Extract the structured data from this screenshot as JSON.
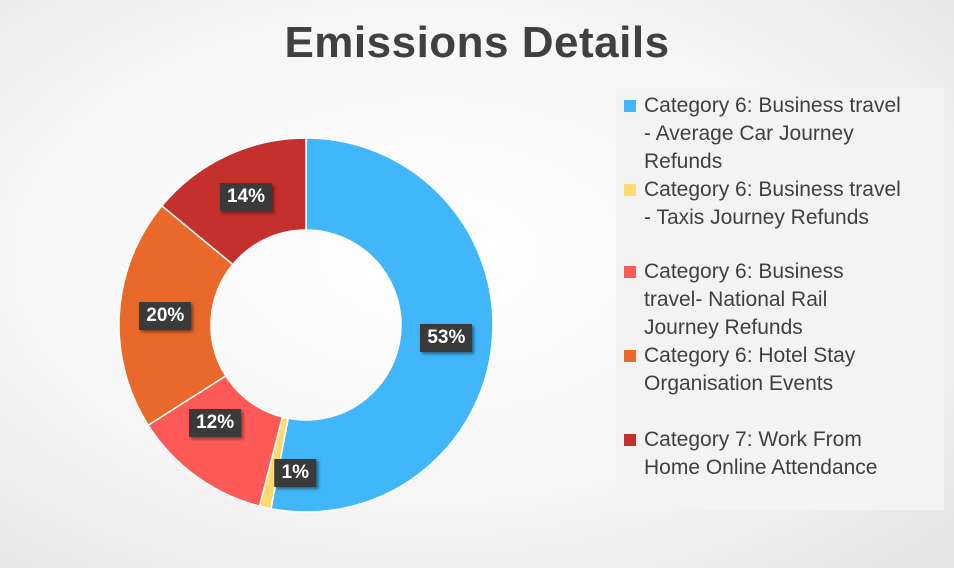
{
  "chart_data": {
    "type": "pie",
    "variant": "donut",
    "title": "Emissions Details",
    "categories": [
      "Category 6: Business travel - Average Car Journey Refunds",
      "Category 6: Business travel - Taxis  Journey Refunds",
      "Category 6: Business travel- National Rail Journey Refunds",
      "Category 6: Hotel Stay Organisation Events",
      "Category 7: Work From Home Online Attendance"
    ],
    "values": [
      53,
      1,
      12,
      20,
      14
    ],
    "data_labels": [
      "53%",
      "1%",
      "12%",
      "20%",
      "14%"
    ],
    "colors": [
      "#41b6fa",
      "#fddb6d",
      "#fd5a57",
      "#e9692b",
      "#c4302b"
    ],
    "legend_position": "right",
    "legend": [
      {
        "text": "Category 6: Business travel\n- Average Car Journey\nRefunds"
      },
      {
        "text": "Category 6: Business travel\n- Taxis  Journey Refunds"
      },
      {
        "text": "Category 6: Business\ntravel- National Rail\nJourney Refunds"
      },
      {
        "text": "Category 6: Hotel Stay\nOrganisation Events"
      },
      {
        "text": "Category 7: Work From\nHome Online Attendance"
      }
    ]
  }
}
